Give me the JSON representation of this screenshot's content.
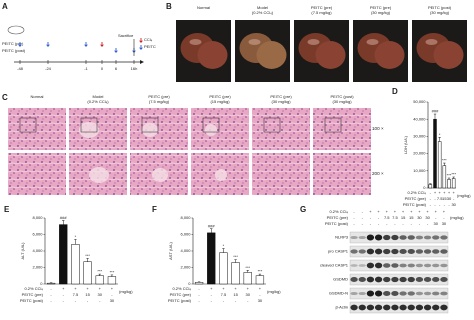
{
  "panels": {
    "a": {
      "letter": "A",
      "rows": [
        "PEITC (pre)",
        "PEITC (post)"
      ],
      "times": [
        "-48",
        "-24",
        "-1",
        "0",
        "6",
        "16h"
      ],
      "sacrifice": "Sacrifice",
      "legend": [
        "CCl₄",
        "PEITC"
      ]
    },
    "b": {
      "letter": "B",
      "columns": [
        [
          "Normal"
        ],
        [
          "Model",
          "(0.2% CCl₄)"
        ],
        [
          "PEITC (pre)",
          "(7.5 mg/kg)"
        ],
        [
          "PEITC (pre)",
          "(30 mg/kg)"
        ],
        [
          "PEITC (post)",
          "(30 mg/kg)"
        ]
      ]
    },
    "c": {
      "letter": "C",
      "columns": [
        [
          "Normal"
        ],
        [
          "Model",
          "(0.2% CCl₄)"
        ],
        [
          "PEITC (pre)",
          "(7.5 mg/kg)"
        ],
        [
          "PEITC (pre)",
          "(15 mg/kg)"
        ],
        [
          "PEITC (pre)",
          "(30 mg/kg)"
        ],
        [
          "PEITC (post)",
          "(30 mg/kg)"
        ]
      ],
      "magnifications": [
        "100 ×",
        "200 ×"
      ]
    },
    "g": {
      "letter": "G",
      "treatment_rows": [
        {
          "label": "0.2% CCl₄",
          "cells": [
            "-",
            "-",
            "+",
            "+",
            "+",
            "+",
            "+",
            "+",
            "+",
            "+",
            "+",
            "+"
          ]
        },
        {
          "label": "PEITC (pre)",
          "cells": [
            "-",
            "-",
            "-",
            "-",
            "7.5",
            "7.5",
            "15",
            "15",
            "30",
            "30",
            "-",
            "-"
          ]
        },
        {
          "label": "PEITC (post)",
          "cells": [
            "-",
            "-",
            "-",
            "-",
            "-",
            "-",
            "-",
            "-",
            "-",
            "-",
            "30",
            "30"
          ]
        }
      ],
      "unit": "(mg/kg)",
      "proteins": [
        "NLRP3",
        "pro CASP1",
        "cleaved CASP1",
        "GSDMD",
        "GSDMD-N",
        "β-Actin"
      ]
    }
  },
  "chart_data": [
    {
      "type": "bar",
      "letter": "D",
      "y_label": "LDH (U/L)",
      "ylim": [
        0,
        50000
      ],
      "yticks": [
        0,
        {
          "value": 10000,
          "label": "10,000"
        },
        {
          "value": 20000,
          "label": "20,000"
        },
        {
          "value": 30000,
          "label": "30,000"
        },
        {
          "value": 40000,
          "label": "40,000"
        },
        {
          "value": 50000,
          "label": "50,000"
        }
      ],
      "values": [
        2000,
        40000,
        27000,
        13000,
        5000,
        5500
      ],
      "errors": [
        500,
        3000,
        2500,
        1500,
        800,
        900
      ],
      "colors": [
        "#ffffff",
        "#111111",
        "#ffffff",
        "#ffffff",
        "#ffffff",
        "#ffffff"
      ],
      "annotations": [
        null,
        "###",
        "*",
        "***",
        "***",
        "***"
      ],
      "treatment_rows": [
        {
          "label": "0.2% CCl₄",
          "cells": [
            "-",
            "+",
            "+",
            "+",
            "+",
            "+"
          ]
        },
        {
          "label": "PEITC (pre)",
          "cells": [
            "-",
            "-",
            "7.5",
            "15",
            "30",
            "-"
          ]
        },
        {
          "label": "PEITC (post)",
          "cells": [
            "-",
            "-",
            "-",
            "-",
            "-",
            "30"
          ]
        }
      ],
      "unit": "(mg/kg)"
    },
    {
      "type": "bar",
      "letter": "E",
      "y_label": "ALT (U/L)",
      "ylim": [
        0,
        8000
      ],
      "yticks": [
        0,
        {
          "value": 2000,
          "label": "2,000"
        },
        {
          "value": 4000,
          "label": "4,000"
        },
        {
          "value": 6000,
          "label": "6,000"
        },
        {
          "value": 8000,
          "label": "8,000"
        }
      ],
      "values": [
        100,
        7200,
        4800,
        2700,
        1000,
        900
      ],
      "errors": [
        50,
        500,
        600,
        400,
        200,
        200
      ],
      "colors": [
        "#ffffff",
        "#111111",
        "#ffffff",
        "#ffffff",
        "#ffffff",
        "#ffffff"
      ],
      "annotations": [
        null,
        "###",
        "*",
        "***",
        "***",
        "***"
      ],
      "treatment_rows": [
        {
          "label": "0.2% CCl₄",
          "cells": [
            "-",
            "+",
            "+",
            "+",
            "+",
            "+"
          ]
        },
        {
          "label": "PEITC (pre)",
          "cells": [
            "-",
            "-",
            "7.5",
            "15",
            "30",
            "-"
          ]
        },
        {
          "label": "PEITC (post)",
          "cells": [
            "-",
            "-",
            "-",
            "-",
            "-",
            "30"
          ]
        }
      ],
      "unit": "(mg/kg)"
    },
    {
      "type": "bar",
      "letter": "F",
      "y_label": "AST (U/L)",
      "ylim": [
        0,
        8000
      ],
      "yticks": [
        0,
        {
          "value": 2000,
          "label": "2,000"
        },
        {
          "value": 4000,
          "label": "4,000"
        },
        {
          "value": 6000,
          "label": "6,000"
        },
        {
          "value": 8000,
          "label": "8,000"
        }
      ],
      "values": [
        200,
        6200,
        3800,
        2600,
        1400,
        1000
      ],
      "errors": [
        60,
        500,
        500,
        350,
        250,
        200
      ],
      "colors": [
        "#ffffff",
        "#111111",
        "#ffffff",
        "#ffffff",
        "#ffffff",
        "#ffffff"
      ],
      "annotations": [
        null,
        "###",
        "*",
        "***",
        "***",
        "***"
      ],
      "treatment_rows": [
        {
          "label": "0.2% CCl₄",
          "cells": [
            "-",
            "+",
            "+",
            "+",
            "+",
            "+"
          ]
        },
        {
          "label": "PEITC (pre)",
          "cells": [
            "-",
            "-",
            "7.5",
            "15",
            "30",
            "-"
          ]
        },
        {
          "label": "PEITC (post)",
          "cells": [
            "-",
            "-",
            "-",
            "-",
            "-",
            "30"
          ]
        }
      ],
      "unit": "(mg/kg)"
    }
  ]
}
